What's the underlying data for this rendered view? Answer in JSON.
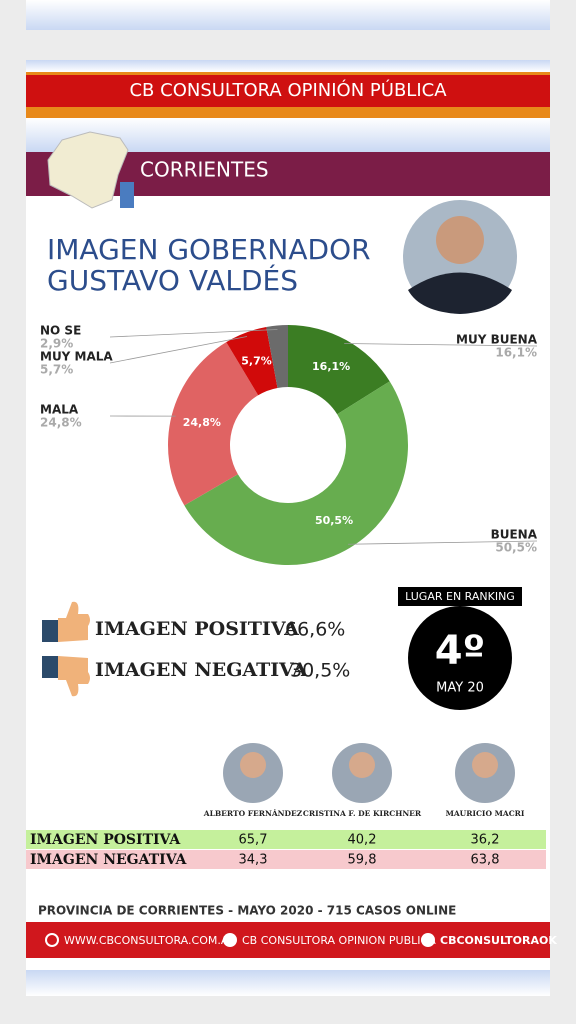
{
  "header": {
    "title": "CB CONSULTORA OPINIÓN PÚBLICA",
    "region": "CORRIENTES"
  },
  "heading": [
    "IMAGEN GOBERNADOR",
    "GUSTAVO VALDÉS"
  ],
  "chart_data": {
    "type": "donut",
    "categories": [
      "MUY BUENA",
      "BUENA",
      "MALA",
      "MUY MALA",
      "NO SE"
    ],
    "values": [
      16.1,
      50.5,
      24.8,
      5.7,
      2.9
    ],
    "value_labels": [
      "16,1%",
      "50,5%",
      "24,8%",
      "5,7%",
      "2,9%"
    ],
    "colors": [
      "#3b7d23",
      "#67ad4f",
      "#e06363",
      "#d10a0a",
      "#6b6b6b"
    ]
  },
  "summary": {
    "positive": {
      "label": "IMAGEN POSITIVA",
      "value": "66,6%"
    },
    "negative": {
      "label": "IMAGEN NEGATIVA",
      "value": "30,5%"
    }
  },
  "ranking": {
    "title": "LUGAR EN RANKING",
    "position": "4º",
    "date": "MAY 20"
  },
  "table": {
    "columns": [
      "ALBERTO FERNÁNDEZ",
      "CRISTINA F. DE KIRCHNER",
      "MAURICIO MACRI"
    ],
    "rows": [
      [
        "IMAGEN POSITIVA",
        "65,7",
        "40,2",
        "36,2"
      ],
      [
        "IMAGEN NEGATIVA",
        "34,3",
        "59,8",
        "63,8"
      ]
    ]
  },
  "footer": {
    "note": "PROVINCIA DE CORRIENTES - MAYO 2020 -  715 CASOS ONLINE",
    "web": "WWW.CBCONSULTORA.COM.AR",
    "facebook": "CB CONSULTORA OPINION PUBLICA",
    "twitter": "CBCONSULTORAOK"
  }
}
